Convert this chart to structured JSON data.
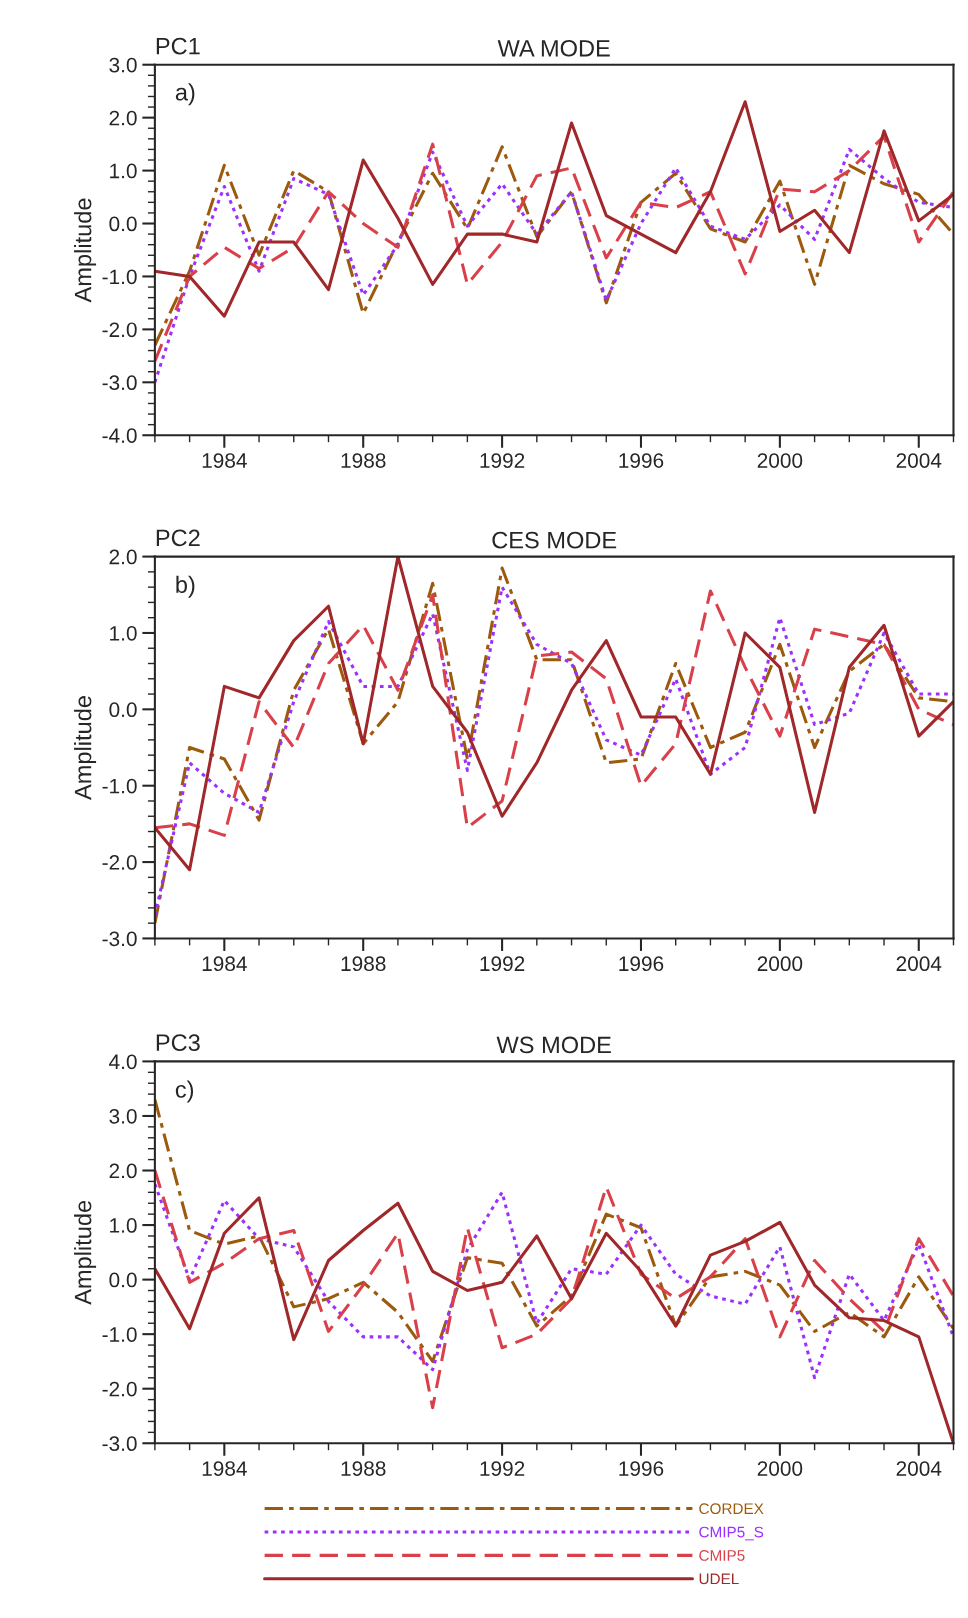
{
  "chart_data": [
    {
      "type": "line",
      "title": "WA MODE",
      "annotations": [
        "PC1",
        "a)"
      ],
      "ylabel": "Amplitude",
      "x": [
        1982,
        1983,
        1984,
        1985,
        1986,
        1987,
        1988,
        1989,
        1990,
        1991,
        1992,
        1993,
        1994,
        1995,
        1996,
        1997,
        1998,
        1999,
        2000,
        2001,
        2002,
        2003,
        2004,
        2005
      ],
      "xlim": [
        1982,
        2005
      ],
      "xticks": [
        1984,
        1988,
        1992,
        1996,
        2000,
        2004
      ],
      "ylim": [
        -4,
        3
      ],
      "yticks": [
        {
          "value": -4,
          "label": "-4.0"
        },
        {
          "value": -3,
          "label": "-3.0"
        },
        {
          "value": -2,
          "label": "-2.0"
        },
        {
          "value": -1,
          "label": "-1.0"
        },
        {
          "value": 0,
          "label": "0.0"
        },
        {
          "value": 1,
          "label": "1.0"
        },
        {
          "value": 2,
          "label": "2.0"
        },
        {
          "value": 3,
          "label": "3.0"
        }
      ],
      "grid": false,
      "legend": false,
      "marker": "none",
      "series": [
        {
          "color": "#9c5a0c",
          "line_style": "dashdot",
          "values": [
            -2.3,
            -0.9,
            1.1,
            -0.6,
            1.0,
            0.6,
            -1.7,
            -0.35,
            0.95,
            -0.1,
            1.45,
            -0.25,
            0.6,
            -1.5,
            0.4,
            0.95,
            -0.1,
            -0.35,
            0.8,
            -1.15,
            1.1,
            0.75,
            0.55,
            -0.2
          ]
        },
        {
          "color": "#9b30ff",
          "line_style": "dotted",
          "values": [
            -3.0,
            -1.0,
            0.7,
            -0.9,
            0.85,
            0.55,
            -1.35,
            -0.4,
            1.35,
            -0.05,
            0.75,
            -0.2,
            0.6,
            -1.45,
            0.0,
            1.05,
            -0.05,
            -0.3,
            0.35,
            -0.3,
            1.4,
            0.85,
            0.4,
            0.3
          ]
        },
        {
          "color": "#d9404a",
          "line_style": "dashed",
          "values": [
            -2.6,
            -1.0,
            -0.45,
            -0.85,
            -0.45,
            0.6,
            0.0,
            -0.45,
            1.5,
            -1.15,
            -0.35,
            0.9,
            1.05,
            -0.65,
            0.4,
            0.3,
            0.6,
            -0.95,
            0.65,
            0.6,
            1.0,
            1.65,
            -0.35,
            0.6
          ]
        },
        {
          "color": "#a0282a",
          "line_style": "solid",
          "values": [
            -0.9,
            -1.0,
            -1.75,
            -0.35,
            -0.35,
            -1.25,
            1.2,
            0.1,
            -1.15,
            -0.2,
            -0.2,
            -0.35,
            1.9,
            0.15,
            -0.2,
            -0.55,
            0.6,
            2.3,
            -0.15,
            0.25,
            -0.55,
            1.75,
            0.05,
            0.55
          ]
        }
      ]
    },
    {
      "type": "line",
      "title": "CES MODE",
      "annotations": [
        "PC2",
        "b)"
      ],
      "ylabel": "Amplitude",
      "x": [
        1982,
        1983,
        1984,
        1985,
        1986,
        1987,
        1988,
        1989,
        1990,
        1991,
        1992,
        1993,
        1994,
        1995,
        1996,
        1997,
        1998,
        1999,
        2000,
        2001,
        2002,
        2003,
        2004,
        2005
      ],
      "xlim": [
        1982,
        2005
      ],
      "xticks": [
        1984,
        1988,
        1992,
        1996,
        2000,
        2004
      ],
      "ylim": [
        -3,
        2
      ],
      "yticks": [
        {
          "value": -3,
          "label": "-3.0"
        },
        {
          "value": -2,
          "label": "-2.0"
        },
        {
          "value": -1,
          "label": "-1.0"
        },
        {
          "value": 0,
          "label": "0.0"
        },
        {
          "value": 1,
          "label": "1.0"
        },
        {
          "value": 2,
          "label": "2.0"
        }
      ],
      "grid": false,
      "legend": false,
      "marker": "none",
      "series": [
        {
          "color": "#9c5a0c",
          "line_style": "dashdot",
          "values": [
            -2.8,
            -0.5,
            -0.65,
            -1.45,
            0.25,
            1.05,
            -0.45,
            0.1,
            1.65,
            -0.65,
            1.85,
            0.65,
            0.65,
            -0.7,
            -0.65,
            0.6,
            -0.5,
            -0.3,
            0.85,
            -0.5,
            0.5,
            0.85,
            0.15,
            0.1
          ]
        },
        {
          "color": "#9b30ff",
          "line_style": "dotted",
          "values": [
            -2.7,
            -0.7,
            -1.1,
            -1.35,
            0.1,
            1.15,
            0.3,
            0.3,
            1.25,
            -0.8,
            1.6,
            0.85,
            0.6,
            -0.4,
            -0.6,
            0.4,
            -0.85,
            -0.5,
            1.2,
            -0.2,
            -0.05,
            1.0,
            0.2,
            0.2
          ]
        },
        {
          "color": "#d9404a",
          "line_style": "dashed",
          "values": [
            -1.55,
            -1.5,
            -1.65,
            0.1,
            -0.5,
            0.6,
            1.1,
            0.25,
            1.5,
            -1.55,
            -1.2,
            0.7,
            0.75,
            0.4,
            -1.0,
            -0.45,
            1.55,
            0.55,
            -0.35,
            1.05,
            0.95,
            0.85,
            0.0,
            -0.2
          ]
        },
        {
          "color": "#a0282a",
          "line_style": "solid",
          "values": [
            -1.55,
            -2.1,
            0.3,
            0.15,
            0.9,
            1.35,
            -0.45,
            2.0,
            0.3,
            -0.3,
            -1.4,
            -0.7,
            0.25,
            0.9,
            -0.1,
            -0.1,
            -0.85,
            1.0,
            0.55,
            -1.35,
            0.55,
            1.1,
            -0.35,
            0.1
          ]
        }
      ]
    },
    {
      "type": "line",
      "title": "WS MODE",
      "annotations": [
        "PC3",
        "c)"
      ],
      "ylabel": "Amplitude",
      "x": [
        1982,
        1983,
        1984,
        1985,
        1986,
        1987,
        1988,
        1989,
        1990,
        1991,
        1992,
        1993,
        1994,
        1995,
        1996,
        1997,
        1998,
        1999,
        2000,
        2001,
        2002,
        2003,
        2004,
        2005
      ],
      "xlim": [
        1982,
        2005
      ],
      "xticks": [
        1984,
        1988,
        1992,
        1996,
        2000,
        2004
      ],
      "ylim": [
        -3,
        4
      ],
      "yticks": [
        {
          "value": -3,
          "label": "-3.0"
        },
        {
          "value": -2,
          "label": "-2.0"
        },
        {
          "value": -1,
          "label": "-1.0"
        },
        {
          "value": 0,
          "label": "0.0"
        },
        {
          "value": 1,
          "label": "1.0"
        },
        {
          "value": 2,
          "label": "2.0"
        },
        {
          "value": 3,
          "label": "3.0"
        },
        {
          "value": 4,
          "label": "4.0"
        }
      ],
      "grid": false,
      "legend": "bottom",
      "marker": "none",
      "series": [
        {
          "name": "CORDEX",
          "color": "#9c5a0c",
          "line_style": "dashdot",
          "values": [
            3.3,
            0.9,
            0.65,
            0.8,
            -0.5,
            -0.35,
            -0.05,
            -0.6,
            -1.5,
            0.4,
            0.3,
            -0.85,
            -0.3,
            1.2,
            0.95,
            -0.85,
            0.05,
            0.15,
            -0.1,
            -0.95,
            -0.6,
            -1.05,
            0.05,
            -0.9
          ]
        },
        {
          "name": "CMIP5_S",
          "color": "#9b30ff",
          "line_style": "dotted",
          "values": [
            1.75,
            0.0,
            1.45,
            0.75,
            0.6,
            -0.4,
            -1.05,
            -1.05,
            -1.65,
            0.55,
            1.6,
            -0.8,
            0.2,
            0.1,
            1.0,
            0.1,
            -0.3,
            -0.45,
            0.6,
            -1.8,
            0.1,
            -0.75,
            0.65,
            -1.05
          ]
        },
        {
          "name": "CMIP5",
          "color": "#d9404a",
          "line_style": "dashed",
          "values": [
            2.0,
            -0.05,
            0.3,
            0.75,
            0.9,
            -0.95,
            -0.1,
            0.85,
            -2.35,
            0.95,
            -1.25,
            -1.0,
            -0.35,
            1.7,
            0.1,
            -0.35,
            0.05,
            0.75,
            -1.05,
            0.35,
            -0.35,
            -0.95,
            0.75,
            -0.3
          ]
        },
        {
          "name": "UDEL",
          "color": "#a0282a",
          "line_style": "solid",
          "values": [
            0.2,
            -0.9,
            0.85,
            1.5,
            -1.1,
            0.35,
            0.9,
            1.4,
            0.15,
            -0.2,
            -0.05,
            0.8,
            -0.35,
            0.85,
            0.15,
            -0.85,
            0.45,
            0.7,
            1.05,
            -0.1,
            -0.7,
            -0.75,
            -1.05,
            -3.0
          ]
        }
      ]
    }
  ]
}
